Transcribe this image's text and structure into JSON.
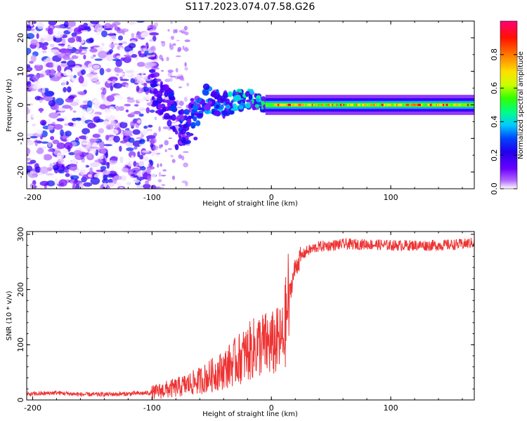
{
  "chart_data": [
    {
      "type": "heatmap",
      "title": "S117.2023.074.07.58.G26",
      "xlabel": "Height of straight line (km)",
      "ylabel": "Frequency (Hz)",
      "xlim": [
        -205,
        170
      ],
      "ylim": [
        -25,
        25
      ],
      "x_ticks": [
        -200,
        -100,
        0,
        100
      ],
      "y_ticks": [
        -20,
        -10,
        0,
        10,
        20
      ],
      "colorbar": {
        "label": "Normalized spectral amplitude",
        "range": [
          0,
          1
        ],
        "ticks": [
          0.0,
          0.2,
          0.4,
          0.6,
          0.8
        ],
        "tick_labels": [
          "0.0",
          "0.2",
          "0.4",
          "0.6",
          "0.8"
        ],
        "colors": [
          "#ffffff",
          "#b066ff",
          "#6a00ff",
          "#2200ee",
          "#0044ff",
          "#00ccff",
          "#00ff80",
          "#33ff00",
          "#ccff00",
          "#ffdd00",
          "#ff7700",
          "#ff1100",
          "#ff0077"
        ]
      },
      "description_of_field": {
        "noise_region_x": [
          -205,
          -100
        ],
        "noise_amplitude": "0.0-0.3",
        "transition_region_x": [
          -100,
          0
        ],
        "transition_frequency_trend": [
          [
            -100,
            5
          ],
          [
            -75,
            -5
          ],
          [
            -55,
            2
          ],
          [
            -40,
            0
          ],
          [
            -20,
            2
          ],
          [
            -5,
            0
          ]
        ],
        "signal_band_x": [
          0,
          170
        ],
        "signal_band_frequency": 0,
        "signal_band_amplitude": "0.5-1.0"
      }
    },
    {
      "type": "line",
      "series_name": "SNR",
      "color": "#ee3333",
      "xlabel": "Height of straight line (km)",
      "ylabel": "SNR (10 * v/v)",
      "xlim": [
        -205,
        170
      ],
      "ylim": [
        0,
        305
      ],
      "x_ticks": [
        -200,
        -100,
        0,
        100
      ],
      "y_ticks": [
        0,
        100,
        200,
        300
      ],
      "x": [
        -205,
        -180,
        -160,
        -140,
        -120,
        -100,
        -90,
        -80,
        -70,
        -60,
        -50,
        -40,
        -30,
        -20,
        -10,
        0,
        10,
        15,
        20,
        25,
        30,
        40,
        60,
        80,
        100,
        120,
        140,
        160,
        170
      ],
      "y": [
        10,
        13,
        10,
        10,
        11,
        13,
        18,
        22,
        28,
        35,
        45,
        55,
        70,
        85,
        100,
        100,
        110,
        190,
        240,
        260,
        270,
        278,
        282,
        282,
        280,
        280,
        280,
        282,
        285
      ]
    }
  ]
}
